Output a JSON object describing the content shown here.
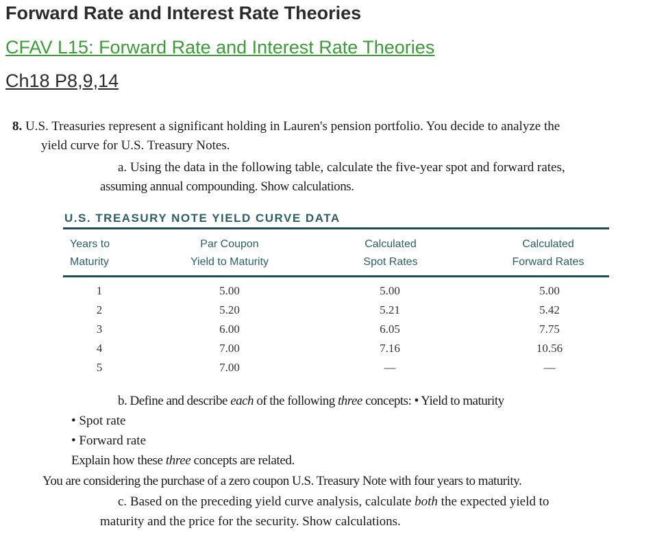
{
  "header": {
    "title": "Forward Rate and Interest Rate Theories",
    "course_link": "CFAV L15: Forward Rate and Interest Rate Theories",
    "chapter_link": "Ch18 P8,9,14"
  },
  "problem": {
    "number": "8.",
    "intro_line1": "U.S. Treasuries represent a significant holding in Lauren's pension portfolio. You decide to analyze the",
    "intro_line2": "yield curve for U.S. Treasury Notes.",
    "part_a_line1": "a. Using the data in the following table, calculate the five-year spot and forward rates,",
    "part_a_line2": "assuming annual compounding. Show calculations."
  },
  "table": {
    "title": "U.S. TREASURY NOTE YIELD CURVE DATA",
    "headers": {
      "years_l1": "Years to",
      "years_l2": "Maturity",
      "ytm_l1": "Par Coupon",
      "ytm_l2": "Yield to Maturity",
      "spot_l1": "Calculated",
      "spot_l2": "Spot Rates",
      "fwd_l1": "Calculated",
      "fwd_l2": "Forward Rates"
    },
    "rows": [
      {
        "years": "1",
        "ytm": "5.00",
        "spot": "5.00",
        "forward": "5.00"
      },
      {
        "years": "2",
        "ytm": "5.20",
        "spot": "5.21",
        "forward": "5.42"
      },
      {
        "years": "3",
        "ytm": "6.00",
        "spot": "6.05",
        "forward": "7.75"
      },
      {
        "years": "4",
        "ytm": "7.00",
        "spot": "7.16",
        "forward": "10.56"
      },
      {
        "years": "5",
        "ytm": "7.00",
        "spot": "—",
        "forward": "—"
      }
    ]
  },
  "part_b": {
    "line1_a": "b. Define and describe ",
    "line1_each": "each",
    "line1_b": " of the following ",
    "line1_three": "three",
    "line1_c": " concepts: • Yield to maturity",
    "bullet_spot": "• Spot rate",
    "bullet_forward": "• Forward rate",
    "explain_a": "Explain how these ",
    "explain_three": "three",
    "explain_b": " concepts are related."
  },
  "zero_coupon": "You are considering the purchase of a zero coupon U.S. Treasury Note with four years to maturity.",
  "part_c": {
    "line1_a": "c. Based on the preceding yield curve analysis, calculate ",
    "line1_both": "both",
    "line1_b": " the expected yield to",
    "line2": "maturity and the price for the security. Show calculations."
  }
}
